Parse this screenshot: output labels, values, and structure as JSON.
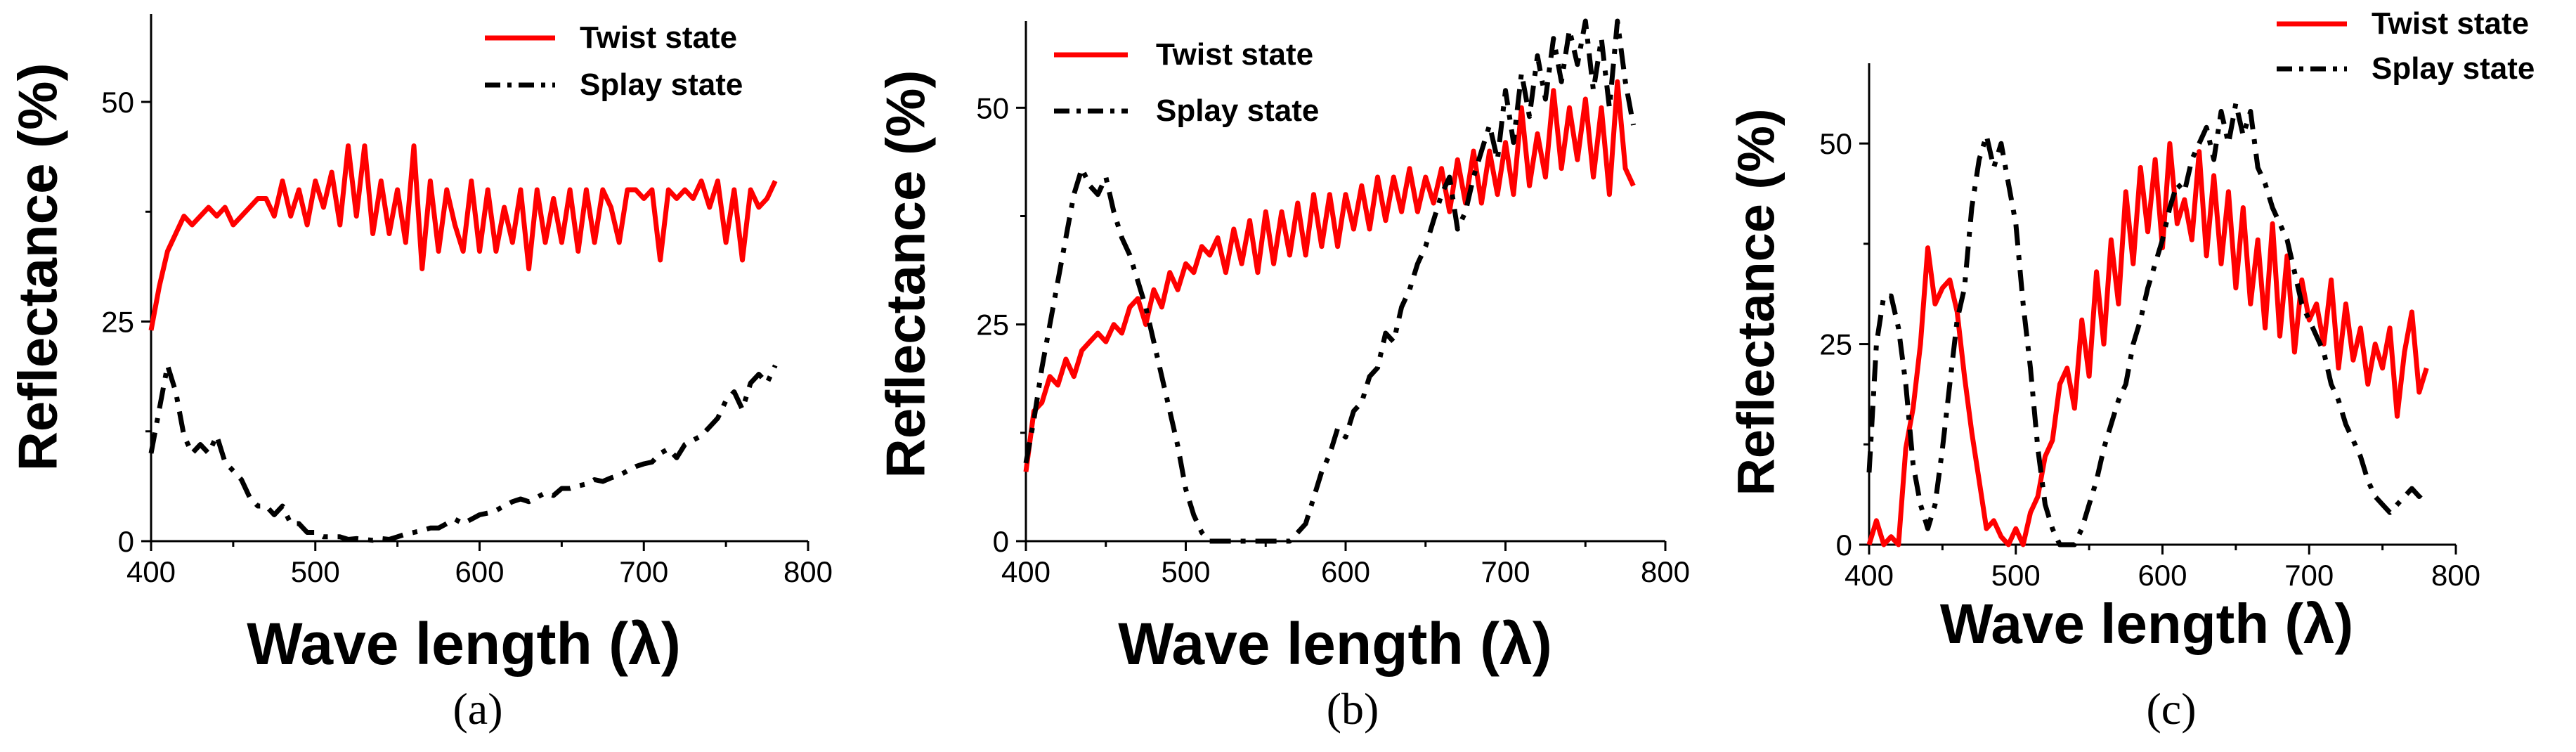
{
  "chart_data": [
    {
      "panel": "(a)",
      "type": "line",
      "xlabel": "Wave length (λ)",
      "ylabel": "Reflectance (%)",
      "xlim": [
        400,
        800
      ],
      "ylim": [
        0,
        60
      ],
      "xticks": [
        "400",
        "500",
        "600",
        "700",
        "800"
      ],
      "yticks": [
        "0",
        "25",
        "50"
      ],
      "legend": "top-right",
      "series": [
        {
          "name": "Twist state",
          "color": "#ff0000",
          "dash": "solid",
          "x": [
            400,
            405,
            410,
            415,
            420,
            425,
            430,
            435,
            440,
            445,
            450,
            455,
            460,
            465,
            470,
            475,
            480,
            485,
            490,
            495,
            500,
            505,
            510,
            515,
            520,
            525,
            530,
            535,
            540,
            545,
            550,
            555,
            560,
            565,
            570,
            575,
            580,
            585,
            590,
            595,
            600,
            605,
            610,
            615,
            620,
            625,
            630,
            635,
            640,
            645,
            650,
            655,
            660,
            665,
            670,
            675,
            680,
            685,
            690,
            695,
            700,
            705,
            710,
            715,
            720,
            725,
            730,
            735,
            740,
            745,
            750,
            755,
            760,
            765,
            770,
            775,
            780
          ],
          "y": [
            24,
            29,
            33,
            35,
            37,
            36,
            37,
            38,
            37,
            38,
            36,
            37,
            38,
            39,
            39,
            37,
            41,
            37,
            40,
            36,
            41,
            38,
            42,
            36,
            45,
            37,
            45,
            35,
            41,
            35,
            40,
            34,
            45,
            31,
            41,
            33,
            40,
            36,
            33,
            41,
            33,
            40,
            33,
            38,
            34,
            40,
            31,
            40,
            34,
            39,
            34,
            40,
            33,
            40,
            34,
            40,
            38,
            34,
            40,
            40,
            39,
            40,
            32,
            40,
            39,
            40,
            39,
            41,
            38,
            41,
            34,
            40,
            32,
            40,
            38,
            39,
            41
          ]
        },
        {
          "name": "Splay state",
          "color": "#000000",
          "dash": "dashdot",
          "x": [
            400,
            405,
            410,
            415,
            420,
            425,
            430,
            435,
            440,
            445,
            450,
            455,
            460,
            465,
            470,
            475,
            480,
            485,
            490,
            495,
            500,
            505,
            510,
            515,
            520,
            525,
            530,
            535,
            540,
            545,
            550,
            555,
            560,
            565,
            570,
            575,
            580,
            585,
            590,
            595,
            600,
            605,
            610,
            615,
            620,
            625,
            630,
            635,
            640,
            645,
            650,
            655,
            660,
            665,
            670,
            675,
            680,
            685,
            690,
            695,
            700,
            705,
            710,
            715,
            720,
            725,
            730,
            735,
            740,
            745,
            750,
            755,
            760,
            765,
            770,
            775,
            780
          ],
          "y": [
            10,
            15,
            20,
            17,
            12,
            10,
            11,
            10,
            12,
            9,
            8,
            7,
            5,
            4,
            4,
            3,
            4,
            2,
            2,
            1,
            1,
            0.5,
            0.5,
            0.5,
            0.2,
            0.3,
            0.2,
            0.1,
            0.3,
            0.2,
            0.5,
            0.8,
            1,
            1.2,
            1.5,
            1.5,
            2,
            2.5,
            2,
            2.5,
            3,
            3.2,
            3.5,
            4,
            4.5,
            4.8,
            4.5,
            5,
            5.5,
            5.2,
            6,
            6,
            6.3,
            6.5,
            7,
            6.8,
            7.2,
            7.5,
            8,
            8.5,
            8.8,
            9,
            10,
            10.5,
            9.5,
            11,
            11.5,
            12,
            13,
            14,
            16,
            17,
            15,
            18,
            19,
            18,
            20
          ]
        }
      ]
    },
    {
      "panel": "(b)",
      "type": "line",
      "xlabel": "Wave length (λ)",
      "ylabel": "Reflectance (%)",
      "xlim": [
        400,
        800
      ],
      "ylim": [
        0,
        60
      ],
      "xticks": [
        "400",
        "500",
        "600",
        "700",
        "800"
      ],
      "yticks": [
        "0",
        "25",
        "50"
      ],
      "legend": "top-left",
      "series": [
        {
          "name": "Twist state",
          "color": "#ff0000",
          "dash": "solid",
          "x": [
            400,
            405,
            410,
            415,
            420,
            425,
            430,
            435,
            440,
            445,
            450,
            455,
            460,
            465,
            470,
            475,
            480,
            485,
            490,
            495,
            500,
            505,
            510,
            515,
            520,
            525,
            530,
            535,
            540,
            545,
            550,
            555,
            560,
            565,
            570,
            575,
            580,
            585,
            590,
            595,
            600,
            605,
            610,
            615,
            620,
            625,
            630,
            635,
            640,
            645,
            650,
            655,
            660,
            665,
            670,
            675,
            680,
            685,
            690,
            695,
            700,
            705,
            710,
            715,
            720,
            725,
            730,
            735,
            740,
            745,
            750,
            755,
            760,
            765,
            770,
            775,
            780
          ],
          "y": [
            8,
            15,
            16,
            19,
            18,
            21,
            19,
            22,
            23,
            24,
            23,
            25,
            24,
            27,
            28,
            25,
            29,
            27,
            31,
            29,
            32,
            31,
            34,
            33,
            35,
            31,
            36,
            32,
            37,
            31,
            38,
            32,
            38,
            33,
            39,
            33,
            40,
            34,
            40,
            34,
            40,
            36,
            41,
            36,
            42,
            37,
            42,
            38,
            43,
            38,
            42,
            39,
            43,
            38,
            44,
            39,
            45,
            39,
            45,
            40,
            46,
            40,
            50,
            41,
            47,
            42,
            52,
            43,
            50,
            44,
            51,
            42,
            50,
            40,
            53,
            43,
            41
          ]
        },
        {
          "name": "Splay state",
          "color": "#000000",
          "dash": "dashdot",
          "x": [
            400,
            405,
            410,
            415,
            420,
            425,
            430,
            435,
            440,
            445,
            450,
            455,
            460,
            465,
            470,
            475,
            480,
            485,
            490,
            495,
            500,
            505,
            510,
            515,
            520,
            525,
            530,
            535,
            540,
            545,
            550,
            555,
            560,
            565,
            570,
            575,
            580,
            585,
            590,
            595,
            600,
            605,
            610,
            615,
            620,
            625,
            630,
            635,
            640,
            645,
            650,
            655,
            660,
            665,
            670,
            675,
            680,
            685,
            690,
            695,
            700,
            705,
            710,
            715,
            720,
            725,
            730,
            735,
            740,
            745,
            750,
            755,
            760,
            765,
            770,
            775,
            780
          ],
          "y": [
            9,
            14,
            20,
            25,
            30,
            35,
            40,
            43,
            41,
            40,
            42,
            38,
            35,
            33,
            30,
            27,
            23,
            19,
            15,
            11,
            6,
            3,
            1,
            0,
            0,
            0,
            0,
            0,
            0,
            0,
            0,
            0,
            0,
            0,
            1,
            2,
            5,
            8,
            10,
            13,
            12,
            15,
            16,
            19,
            20,
            24,
            23,
            27,
            29,
            32,
            34,
            37,
            40,
            42,
            36,
            38,
            42,
            45,
            48,
            44,
            52,
            46,
            54,
            49,
            56,
            51,
            58,
            53,
            59,
            55,
            60,
            52,
            58,
            50,
            60,
            53,
            48
          ]
        }
      ]
    },
    {
      "panel": "(c)",
      "type": "line",
      "xlabel": "Wave length (λ)",
      "ylabel": "Reflectance (%)",
      "xlim": [
        400,
        800
      ],
      "ylim": [
        0,
        60
      ],
      "xticks": [
        "400",
        "500",
        "600",
        "700",
        "800"
      ],
      "yticks": [
        "0",
        "25",
        "50"
      ],
      "legend": "top-right",
      "series": [
        {
          "name": "Twist state",
          "color": "#ff0000",
          "dash": "solid",
          "x": [
            400,
            405,
            410,
            415,
            420,
            425,
            430,
            435,
            440,
            445,
            450,
            455,
            460,
            465,
            470,
            475,
            480,
            485,
            490,
            495,
            500,
            505,
            510,
            515,
            520,
            525,
            530,
            535,
            540,
            545,
            550,
            555,
            560,
            565,
            570,
            575,
            580,
            585,
            590,
            595,
            600,
            605,
            610,
            615,
            620,
            625,
            630,
            635,
            640,
            645,
            650,
            655,
            660,
            665,
            670,
            675,
            680,
            685,
            690,
            695,
            700,
            705,
            710,
            715,
            720,
            725,
            730,
            735,
            740,
            745,
            750,
            755,
            760,
            765,
            770,
            775,
            780
          ],
          "y": [
            0,
            3,
            0,
            1,
            0,
            12,
            17,
            25,
            37,
            30,
            32,
            33,
            29,
            21,
            14,
            8,
            2,
            3,
            1,
            0,
            2,
            0,
            4,
            6,
            11,
            13,
            20,
            22,
            17,
            28,
            21,
            34,
            25,
            38,
            30,
            44,
            35,
            47,
            39,
            48,
            37,
            50,
            40,
            43,
            38,
            49,
            36,
            46,
            35,
            44,
            32,
            42,
            30,
            38,
            27,
            40,
            26,
            36,
            24,
            33,
            28,
            30,
            25,
            33,
            22,
            30,
            23,
            27,
            20,
            25,
            22,
            27,
            16,
            24,
            29,
            19,
            22
          ]
        },
        {
          "name": "Splay state",
          "color": "#000000",
          "dash": "dashdot",
          "x": [
            400,
            405,
            410,
            415,
            420,
            425,
            430,
            435,
            440,
            445,
            450,
            455,
            460,
            465,
            470,
            475,
            480,
            485,
            490,
            495,
            500,
            505,
            510,
            515,
            520,
            525,
            530,
            535,
            540,
            545,
            550,
            555,
            560,
            565,
            570,
            575,
            580,
            585,
            590,
            595,
            600,
            605,
            610,
            615,
            620,
            625,
            630,
            635,
            640,
            645,
            650,
            655,
            660,
            665,
            670,
            675,
            680,
            685,
            690,
            695,
            700,
            705,
            710,
            715,
            720,
            725,
            730,
            735,
            740,
            745,
            750,
            755,
            760,
            765,
            770,
            775,
            780
          ],
          "y": [
            9,
            25,
            31,
            31,
            27,
            20,
            10,
            5,
            2,
            5,
            12,
            20,
            28,
            32,
            42,
            48,
            51,
            47,
            50,
            45,
            40,
            30,
            22,
            12,
            5,
            2,
            0,
            0,
            0,
            2,
            5,
            8,
            12,
            15,
            18,
            20,
            25,
            28,
            32,
            35,
            38,
            42,
            45,
            44,
            48,
            50,
            52,
            48,
            54,
            50,
            55,
            51,
            54,
            47,
            45,
            42,
            40,
            38,
            34,
            30,
            28,
            26,
            24,
            20,
            18,
            15,
            13,
            11,
            8,
            6,
            5,
            4,
            5,
            6,
            7,
            6,
            7
          ]
        }
      ]
    }
  ]
}
